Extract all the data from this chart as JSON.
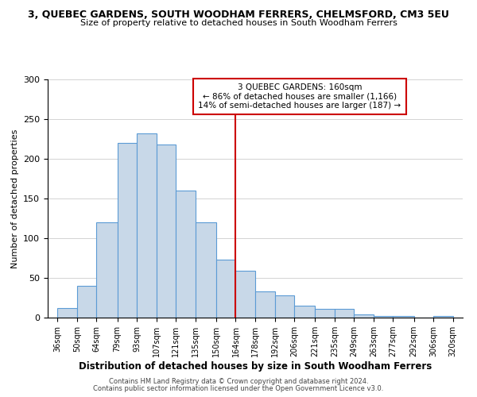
{
  "title": "3, QUEBEC GARDENS, SOUTH WOODHAM FERRERS, CHELMSFORD, CM3 5EU",
  "subtitle": "Size of property relative to detached houses in South Woodham Ferrers",
  "xlabel": "Distribution of detached houses by size in South Woodham Ferrers",
  "ylabel": "Number of detached properties",
  "bin_labels": [
    "36sqm",
    "50sqm",
    "64sqm",
    "79sqm",
    "93sqm",
    "107sqm",
    "121sqm",
    "135sqm",
    "150sqm",
    "164sqm",
    "178sqm",
    "192sqm",
    "206sqm",
    "221sqm",
    "235sqm",
    "249sqm",
    "263sqm",
    "277sqm",
    "292sqm",
    "306sqm",
    "320sqm"
  ],
  "bar_values": [
    12,
    40,
    120,
    220,
    232,
    218,
    160,
    120,
    73,
    59,
    33,
    28,
    15,
    11,
    11,
    4,
    2,
    2,
    0,
    2
  ],
  "bar_color": "#c8d8e8",
  "bar_edge_color": "#5b9bd5",
  "ref_line_color": "#cc0000",
  "annotation_title": "3 QUEBEC GARDENS: 160sqm",
  "annotation_line1": "← 86% of detached houses are smaller (1,166)",
  "annotation_line2": "14% of semi-detached houses are larger (187) →",
  "annotation_box_color": "#ffffff",
  "annotation_box_edge": "#cc0000",
  "ylim": [
    0,
    300
  ],
  "yticks": [
    0,
    50,
    100,
    150,
    200,
    250,
    300
  ],
  "footer1": "Contains HM Land Registry data © Crown copyright and database right 2024.",
  "footer2": "Contains public sector information licensed under the Open Government Licence v3.0."
}
